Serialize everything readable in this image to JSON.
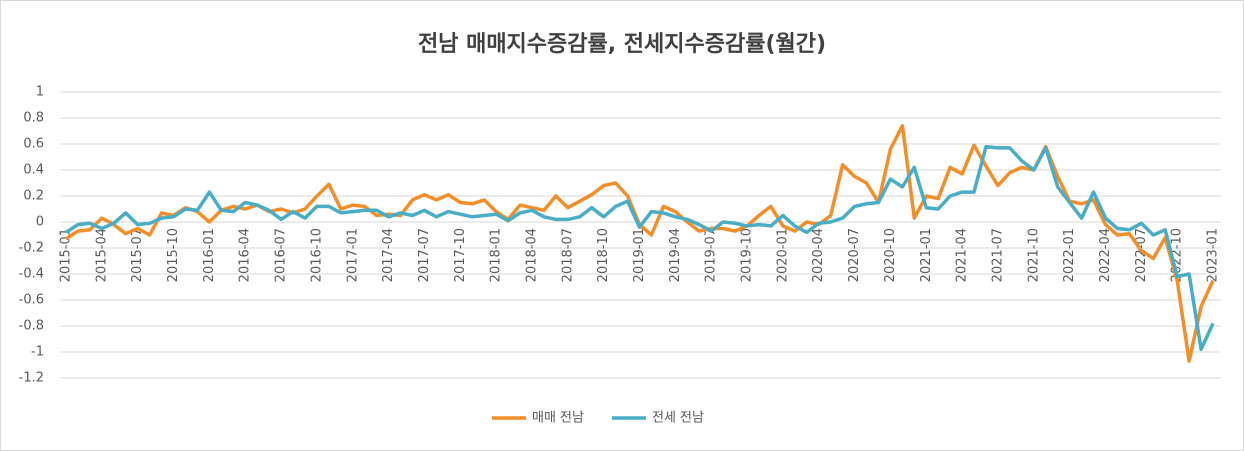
{
  "chart_data": {
    "type": "line",
    "title": "전남 매매지수증감률, 전세지수증감률(월간)",
    "categories": [
      "2015-01",
      null,
      null,
      "2015-04",
      null,
      null,
      "2015-07",
      null,
      null,
      "2015-10",
      null,
      null,
      "2016-01",
      null,
      null,
      "2016-04",
      null,
      null,
      "2016-07",
      null,
      null,
      "2016-10",
      null,
      null,
      "2017-01",
      null,
      null,
      "2017-04",
      null,
      null,
      "2017-07",
      null,
      null,
      "2017-10",
      null,
      null,
      "2018-01",
      null,
      null,
      "2018-04",
      null,
      null,
      "2018-07",
      null,
      null,
      "2018-10",
      null,
      null,
      "2019-01",
      null,
      null,
      "2019-04",
      null,
      null,
      "2019-07",
      null,
      null,
      "2019-10",
      null,
      null,
      "2020-01",
      null,
      null,
      "2020-04",
      null,
      null,
      "2020-07",
      null,
      null,
      "2020-10",
      null,
      null,
      "2021-01",
      null,
      null,
      "2021-04",
      null,
      null,
      "2021-07",
      null,
      null,
      "2021-10",
      null,
      null,
      "2022-01",
      null,
      null,
      "2022-04",
      null,
      null,
      "2022-07",
      null,
      null,
      "2022-10",
      null,
      null,
      "2023-01"
    ],
    "series": [
      {
        "name": "매매 전남",
        "color": "#f28e2b",
        "values": [
          -0.13,
          -0.07,
          -0.06,
          0.03,
          -0.02,
          -0.09,
          -0.05,
          -0.1,
          0.07,
          0.05,
          0.11,
          0.08,
          0.0,
          0.09,
          0.12,
          0.1,
          0.13,
          0.08,
          0.1,
          0.07,
          0.1,
          0.2,
          0.29,
          0.1,
          0.13,
          0.12,
          0.05,
          0.06,
          0.05,
          0.17,
          0.21,
          0.17,
          0.21,
          0.15,
          0.14,
          0.17,
          0.08,
          0.02,
          0.13,
          0.11,
          0.09,
          0.2,
          0.11,
          0.16,
          0.21,
          0.28,
          0.3,
          0.2,
          -0.02,
          -0.1,
          0.12,
          0.08,
          0.0,
          -0.07,
          -0.05,
          -0.05,
          -0.07,
          -0.03,
          0.05,
          0.12,
          -0.03,
          -0.07,
          0.0,
          -0.02,
          0.05,
          0.44,
          0.35,
          0.3,
          0.15,
          0.56,
          0.74,
          0.03,
          0.2,
          0.18,
          0.42,
          0.37,
          0.59,
          0.43,
          0.28,
          0.38,
          0.42,
          0.4,
          0.58,
          0.35,
          0.16,
          0.14,
          0.17,
          -0.02,
          -0.1,
          -0.09,
          -0.22,
          -0.28,
          -0.12,
          -0.45,
          -1.07,
          -0.65,
          -0.45
        ]
      },
      {
        "name": "전세 전남",
        "color": "#4bacc6",
        "values": [
          -0.08,
          -0.02,
          -0.01,
          -0.05,
          -0.01,
          0.07,
          -0.02,
          -0.01,
          0.03,
          0.04,
          0.1,
          0.09,
          0.23,
          0.09,
          0.08,
          0.15,
          0.13,
          0.09,
          0.02,
          0.08,
          0.03,
          0.12,
          0.12,
          0.07,
          0.08,
          0.09,
          0.09,
          0.04,
          0.07,
          0.05,
          0.09,
          0.04,
          0.08,
          0.06,
          0.04,
          0.05,
          0.06,
          0.01,
          0.07,
          0.09,
          0.04,
          0.02,
          0.02,
          0.04,
          0.11,
          0.04,
          0.12,
          0.16,
          -0.04,
          0.08,
          0.07,
          0.04,
          0.02,
          -0.02,
          -0.07,
          0.0,
          -0.01,
          -0.03,
          -0.02,
          -0.03,
          0.05,
          -0.03,
          -0.08,
          -0.01,
          0.0,
          0.03,
          0.12,
          0.14,
          0.15,
          0.33,
          0.27,
          0.42,
          0.11,
          0.1,
          0.2,
          0.23,
          0.23,
          0.58,
          0.57,
          0.57,
          0.47,
          0.4,
          0.57,
          0.27,
          0.15,
          0.03,
          0.23,
          0.03,
          -0.05,
          -0.06,
          -0.01,
          -0.1,
          -0.06,
          -0.42,
          -0.4,
          -0.98,
          -0.78
        ]
      }
    ],
    "ylim": [
      -1.2,
      1
    ],
    "yticks": [
      1,
      0.8,
      0.6,
      0.4,
      0.2,
      0,
      -0.2,
      -0.4,
      -0.6,
      -0.8,
      -1,
      -1.2
    ],
    "grid": true,
    "legend": "bottom"
  }
}
